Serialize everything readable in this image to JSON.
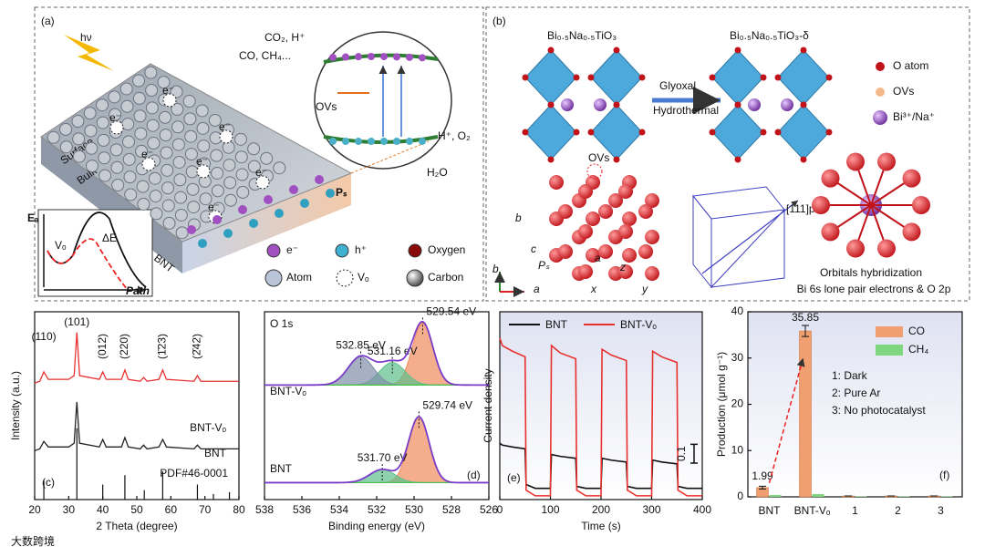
{
  "a": {
    "label": "(a)",
    "hv": "hν",
    "co2": "CO₂, H⁺",
    "co": "CO, CH₄...",
    "ovs": "OVs",
    "h_o2": "H⁺, O₂",
    "h2o": "H₂O",
    "surface": "Surface",
    "bulk": "Bulk",
    "bnt": "BNT",
    "ps": "Pₛ",
    "ea": "Eₐ",
    "vo": "Vₒ",
    "de": "ΔE",
    "path": "Path",
    "e_label": "e⁻",
    "legend": [
      "e⁻",
      "h⁺",
      "Oxygen",
      "Atom",
      "Vₒ",
      "Carbon"
    ]
  },
  "b": {
    "label": "(b)",
    "left": "Bi₀.₅Na₀.₅TiO₃",
    "right": "Bi₀.₅Na₀.₅TiO₃-δ",
    "arrow_top": "Glyoxal",
    "arrow_bottom": "Hydrothermal",
    "legend": [
      "O atom",
      "OVs",
      "Bi³⁺/Na⁺"
    ],
    "ovs": "OVs",
    "dir": "[111]pc",
    "axes": [
      "b",
      "c",
      "a",
      "z",
      "x",
      "y",
      "Pₛ",
      "b",
      "a"
    ],
    "caption1": "Orbitals hybridization",
    "caption2": "Bi 6s lone pair electrons & O 2p"
  },
  "c": {
    "type": "line",
    "label": "(c)",
    "xlabel": "2 Theta (degree)",
    "ylabel": "Intensity (a.u.)",
    "xlim": [
      20,
      80
    ],
    "xticks": [
      20,
      30,
      40,
      50,
      60,
      70,
      80
    ],
    "ylim": [
      0,
      100
    ],
    "x": [
      20,
      21.5,
      22.7,
      24,
      30,
      31.6,
      32.4,
      33.2,
      39,
      40,
      41,
      45.5,
      46.5,
      47.5,
      51,
      52,
      53,
      56.5,
      57.6,
      58.7,
      66.8,
      67.8,
      68.8,
      72,
      80
    ],
    "series": [
      {
        "name": "BNT-Vₒ",
        "color": "#e8312f",
        "values": [
          62,
          63,
          68,
          64,
          64,
          66,
          89,
          66,
          64,
          68,
          64,
          64,
          69,
          64,
          63,
          65,
          63,
          64,
          69,
          64,
          63,
          66,
          63,
          63,
          63
        ]
      },
      {
        "name": "BNT",
        "color": "#222222",
        "values": [
          26,
          27,
          31,
          28,
          28,
          30,
          52,
          30,
          28,
          32,
          28,
          28,
          33,
          28,
          27,
          29,
          27,
          28,
          32,
          28,
          27,
          29,
          27,
          27,
          27
        ]
      }
    ],
    "reference": {
      "name": "PDF#46-0001",
      "x": [
        22.7,
        32.4,
        40,
        46.5,
        52.2,
        57.6,
        67.8,
        72.5,
        77.2
      ],
      "values": [
        10,
        38,
        8,
        13,
        5,
        15,
        8,
        3,
        4
      ]
    },
    "peaks": [
      {
        "label": "(110)",
        "x": 22.7
      },
      {
        "label": "(101)",
        "x": 32.4
      },
      {
        "label": "(012)",
        "x": 40
      },
      {
        "label": "(220)",
        "x": 46.5
      },
      {
        "label": "(1̄23)",
        "x": 57.6
      },
      {
        "label": "(2̄42)",
        "x": 67.8
      }
    ]
  },
  "d": {
    "type": "xps",
    "label": "(d)",
    "title": "O 1s",
    "xlabel": "Binding energy (eV)",
    "xlim": [
      538,
      526
    ],
    "xticks": [
      538,
      536,
      534,
      532,
      530,
      528,
      526
    ],
    "ylim": [
      0,
      100
    ],
    "spectra": [
      {
        "name": "BNT-Vₒ",
        "baseline": 61,
        "components": [
          {
            "center": 529.54,
            "label": "529.54 eV",
            "height": 33,
            "fwhm": 1.3,
            "color": "#f08a5d"
          },
          {
            "center": 531.16,
            "label": "531.16 eV",
            "height": 12,
            "fwhm": 1.6,
            "color": "#5cbf8a"
          },
          {
            "center": 532.85,
            "label": "532.85 eV",
            "height": 15,
            "fwhm": 1.6,
            "color": "#7f8fa8"
          }
        ]
      },
      {
        "name": "BNT",
        "baseline": 9,
        "components": [
          {
            "center": 529.74,
            "label": "529.74 eV",
            "height": 35,
            "fwhm": 1.3,
            "color": "#f08a5d"
          },
          {
            "center": 531.7,
            "label": "531.70 eV",
            "height": 7,
            "fwhm": 1.6,
            "color": "#5cbf8a"
          }
        ]
      }
    ]
  },
  "e": {
    "type": "line",
    "label": "(e)",
    "xlabel": "Time (s)",
    "ylabel": "Current density",
    "xlim": [
      0,
      400
    ],
    "xticks": [
      0,
      100,
      200,
      300,
      400
    ],
    "ylim": [
      0,
      1
    ],
    "scalebar": 0.1,
    "x": [
      0,
      5,
      25,
      50,
      52,
      70,
      100,
      102,
      120,
      150,
      152,
      170,
      200,
      202,
      220,
      250,
      252,
      270,
      300,
      302,
      320,
      350,
      352,
      370,
      400
    ],
    "series": [
      {
        "name": "BNT",
        "color": "#111111",
        "values": [
          0.3,
          0.29,
          0.28,
          0.27,
          0.08,
          0.06,
          0.06,
          0.24,
          0.23,
          0.22,
          0.07,
          0.06,
          0.06,
          0.22,
          0.21,
          0.2,
          0.07,
          0.06,
          0.06,
          0.21,
          0.2,
          0.19,
          0.07,
          0.06,
          0.06
        ]
      },
      {
        "name": "BNT-Vₒ",
        "color": "#e8312f",
        "values": [
          0.86,
          0.82,
          0.79,
          0.76,
          0.05,
          0.02,
          0.02,
          0.82,
          0.78,
          0.75,
          0.05,
          0.02,
          0.02,
          0.8,
          0.77,
          0.74,
          0.05,
          0.02,
          0.02,
          0.79,
          0.76,
          0.73,
          0.05,
          0.02,
          0.02
        ]
      }
    ]
  },
  "f": {
    "type": "bar",
    "label": "(f)",
    "ylabel": "Production (μmol g⁻¹)",
    "categories": [
      "BNT",
      "BNT-Vₒ",
      "1",
      "2",
      "3"
    ],
    "ylim": [
      0,
      40
    ],
    "yticks": [
      0,
      10,
      20,
      30,
      40
    ],
    "series": [
      {
        "name": "CO",
        "color": "#f0a070",
        "values": [
          1.99,
          35.85,
          0.2,
          0.2,
          0.2
        ],
        "errors": [
          0.3,
          1.2,
          0,
          0,
          0
        ]
      },
      {
        "name": "CH₄",
        "color": "#7ed67e",
        "values": [
          0.4,
          0.6,
          0.1,
          0.1,
          0.1
        ]
      }
    ],
    "notes": [
      "1: Dark",
      "2: Pure Ar",
      "3: No photocatalyst"
    ]
  },
  "watermark": "大数跨境"
}
